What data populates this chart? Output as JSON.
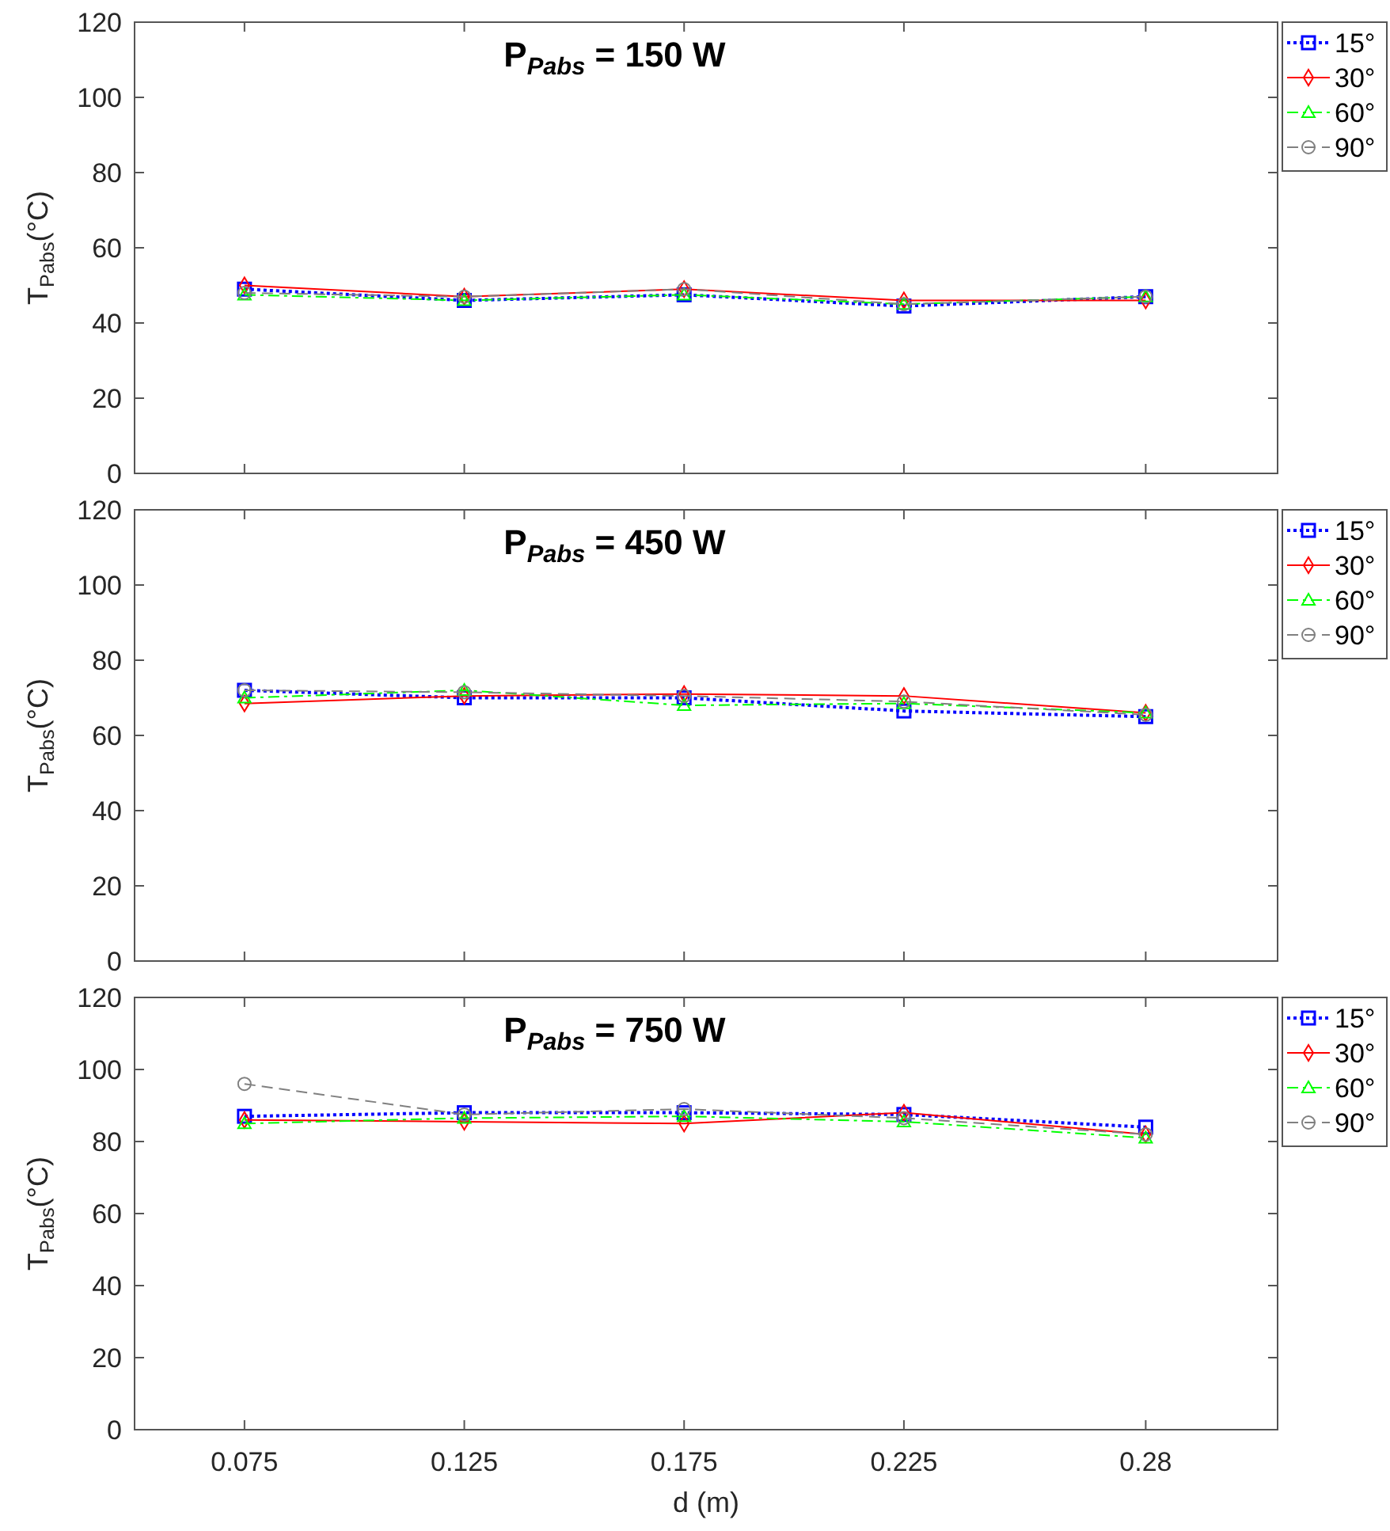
{
  "chart_data": [
    {
      "type": "line",
      "title": "P$_{Pabs}$ = 150 W",
      "ylabel": "T$_{Pabs}$(°C)",
      "x": [
        0.075,
        0.125,
        0.175,
        0.225,
        0.28
      ],
      "xlim": [
        0.05,
        0.31
      ],
      "xticks": [
        0.075,
        0.125,
        0.175,
        0.225,
        0.28
      ],
      "ylim": [
        0,
        120
      ],
      "yticks": [
        0,
        20,
        40,
        60,
        80,
        100,
        120
      ],
      "tick_labels": "y",
      "legend": "right",
      "grid": false,
      "series": [
        {
          "name": "15°",
          "color": "#0000ff",
          "marker": "square",
          "line_style": "dotted",
          "values": [
            49,
            46,
            47.5,
            44.5,
            47
          ]
        },
        {
          "name": "30°",
          "color": "#ff0000",
          "marker": "diamond",
          "line_style": "solid",
          "values": [
            50,
            47,
            49,
            46,
            46
          ]
        },
        {
          "name": "60°",
          "color": "#00ff00",
          "marker": "triangle",
          "line_style": "dashdot",
          "values": [
            47.5,
            46,
            47.5,
            45,
            47
          ]
        },
        {
          "name": "90°",
          "color": "#808080",
          "marker": "circle",
          "line_style": "dashed",
          "values": [
            48,
            47,
            49,
            45,
            47
          ]
        }
      ]
    },
    {
      "type": "line",
      "title": "P$_{Pabs}$ = 450 W",
      "ylabel": "T$_{Pabs}$(°C)",
      "x": [
        0.075,
        0.125,
        0.175,
        0.225,
        0.28
      ],
      "xlim": [
        0.05,
        0.31
      ],
      "xticks": [
        0.075,
        0.125,
        0.175,
        0.225,
        0.28
      ],
      "ylim": [
        0,
        120
      ],
      "yticks": [
        0,
        20,
        40,
        60,
        80,
        100,
        120
      ],
      "tick_labels": "y",
      "legend": "right",
      "grid": false,
      "series": [
        {
          "name": "15°",
          "color": "#0000ff",
          "marker": "square",
          "line_style": "dotted",
          "values": [
            72,
            70,
            70,
            66.5,
            65
          ]
        },
        {
          "name": "30°",
          "color": "#ff0000",
          "marker": "diamond",
          "line_style": "solid",
          "values": [
            68.5,
            70.5,
            71,
            70.5,
            66
          ]
        },
        {
          "name": "60°",
          "color": "#00ff00",
          "marker": "triangle",
          "line_style": "dashdot",
          "values": [
            70,
            72,
            68,
            68.5,
            66
          ]
        },
        {
          "name": "90°",
          "color": "#808080",
          "marker": "circle",
          "line_style": "dashed",
          "values": [
            72,
            71.5,
            70.5,
            69,
            65.5
          ]
        }
      ]
    },
    {
      "type": "line",
      "title": "P$_{Pabs}$ = 750 W",
      "ylabel": "T$_{Pabs}$(°C)",
      "xlabel": "d (m)",
      "x": [
        0.075,
        0.125,
        0.175,
        0.225,
        0.28
      ],
      "xlim": [
        0.05,
        0.31
      ],
      "xticks": [
        0.075,
        0.125,
        0.175,
        0.225,
        0.28
      ],
      "ylim": [
        0,
        120
      ],
      "yticks": [
        0,
        20,
        40,
        60,
        80,
        100,
        120
      ],
      "legend": "right",
      "grid": false,
      "series": [
        {
          "name": "15°",
          "color": "#0000ff",
          "marker": "square",
          "line_style": "dotted",
          "values": [
            87,
            88,
            88,
            87.5,
            84
          ]
        },
        {
          "name": "30°",
          "color": "#ff0000",
          "marker": "diamond",
          "line_style": "solid",
          "values": [
            86,
            85.5,
            85,
            88,
            82
          ]
        },
        {
          "name": "60°",
          "color": "#00ff00",
          "marker": "triangle",
          "line_style": "dashdot",
          "values": [
            85,
            86.5,
            87,
            85.5,
            81
          ]
        },
        {
          "name": "90°",
          "color": "#808080",
          "marker": "circle",
          "line_style": "dashed",
          "values": [
            96,
            87.5,
            89,
            86.5,
            82
          ]
        }
      ]
    }
  ]
}
